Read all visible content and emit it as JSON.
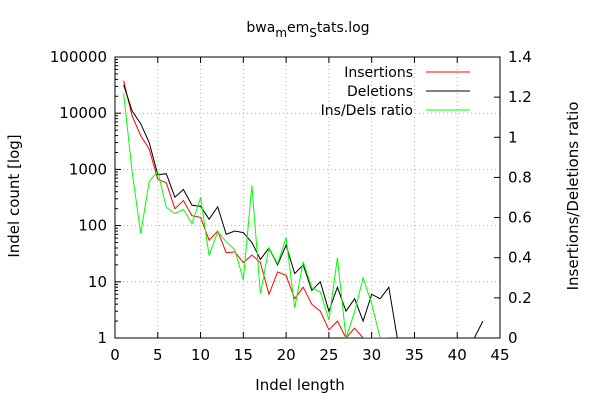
{
  "chart_data": {
    "type": "line",
    "title_parts": {
      "a": "bwa",
      "b": "m",
      "c": "em",
      "d": "S",
      "e": "tats.log"
    },
    "xlabel": "Indel length",
    "ylabel": "Indel count [log]",
    "y2label": "Insertions/Deletions ratio",
    "xlim": [
      0,
      45
    ],
    "ylim": [
      1,
      100000
    ],
    "y_scale": "log",
    "y2lim": [
      0,
      1.4
    ],
    "grid": true,
    "legend_position": "top-right",
    "x_ticks": [
      {
        "value": 0,
        "label": "0"
      },
      {
        "value": 5,
        "label": "5"
      },
      {
        "value": 10,
        "label": "10"
      },
      {
        "value": 15,
        "label": "15"
      },
      {
        "value": 20,
        "label": "20"
      },
      {
        "value": 25,
        "label": "25"
      },
      {
        "value": 30,
        "label": "30"
      },
      {
        "value": 35,
        "label": "35"
      },
      {
        "value": 40,
        "label": "40"
      },
      {
        "value": 45,
        "label": "45"
      }
    ],
    "y_ticks": [
      {
        "value": 1,
        "label": "1"
      },
      {
        "value": 10,
        "label": "10"
      },
      {
        "value": 100,
        "label": "100"
      },
      {
        "value": 1000,
        "label": "1000"
      },
      {
        "value": 10000,
        "label": "10000"
      },
      {
        "value": 100000,
        "label": "100000"
      }
    ],
    "y2_ticks": [
      {
        "value": 0,
        "label": "0"
      },
      {
        "value": 0.2,
        "label": "0.2"
      },
      {
        "value": 0.4,
        "label": "0.4"
      },
      {
        "value": 0.6,
        "label": "0.6"
      },
      {
        "value": 0.8,
        "label": "0.8"
      },
      {
        "value": 1,
        "label": "1"
      },
      {
        "value": 1.2,
        "label": "1.2"
      },
      {
        "value": 1.4,
        "label": "1.4"
      }
    ],
    "series": [
      {
        "name": "Insertions",
        "color": "#ff0000",
        "axis": "left",
        "points": [
          [
            1,
            38000
          ],
          [
            2,
            9000
          ],
          [
            3,
            4000
          ],
          [
            4,
            2300
          ],
          [
            5,
            660
          ],
          [
            6,
            580
          ],
          [
            7,
            200
          ],
          [
            8,
            280
          ],
          [
            9,
            150
          ],
          [
            10,
            140
          ],
          [
            11,
            55
          ],
          [
            12,
            80
          ],
          [
            13,
            33
          ],
          [
            14,
            34
          ],
          [
            15,
            22
          ],
          [
            16,
            30
          ],
          [
            17,
            22
          ],
          [
            18,
            6
          ],
          [
            19,
            15
          ],
          [
            20,
            13
          ],
          [
            21,
            5
          ],
          [
            22,
            8
          ],
          [
            23,
            4
          ],
          [
            24,
            3
          ],
          [
            25,
            1.4
          ],
          [
            26,
            2
          ],
          [
            27,
            1
          ],
          [
            28,
            1.5
          ],
          [
            29,
            1
          ],
          [
            30,
            1
          ],
          [
            31,
            1
          ],
          [
            32,
            1
          ]
        ]
      },
      {
        "name": "Deletions",
        "color": "#000000",
        "axis": "left",
        "points": [
          [
            1,
            32000
          ],
          [
            2,
            11000
          ],
          [
            3,
            6500
          ],
          [
            4,
            3000
          ],
          [
            5,
            800
          ],
          [
            6,
            840
          ],
          [
            7,
            320
          ],
          [
            8,
            440
          ],
          [
            9,
            230
          ],
          [
            10,
            220
          ],
          [
            11,
            130
          ],
          [
            12,
            215
          ],
          [
            13,
            70
          ],
          [
            14,
            80
          ],
          [
            15,
            75
          ],
          [
            16,
            50
          ],
          [
            17,
            25
          ],
          [
            18,
            40
          ],
          [
            19,
            20
          ],
          [
            20,
            45
          ],
          [
            21,
            14
          ],
          [
            22,
            20
          ],
          [
            23,
            7
          ],
          [
            24,
            10
          ],
          [
            25,
            3
          ],
          [
            26,
            8
          ],
          [
            27,
            3
          ],
          [
            28,
            5
          ],
          [
            29,
            2
          ],
          [
            30,
            6
          ],
          [
            31,
            5
          ],
          [
            32,
            8
          ],
          [
            33,
            1
          ],
          [
            34,
            1
          ],
          [
            35,
            1
          ],
          [
            36,
            1
          ],
          [
            37,
            1
          ],
          [
            38,
            1
          ],
          [
            39,
            1
          ],
          [
            40,
            1
          ],
          [
            41,
            1
          ],
          [
            42,
            1
          ],
          [
            43,
            2
          ]
        ]
      },
      {
        "name": "Ins/Dels ratio",
        "color": "#00ff00",
        "axis": "right",
        "points": [
          [
            1,
            1.22
          ],
          [
            2,
            0.83
          ],
          [
            3,
            0.52
          ],
          [
            4,
            0.78
          ],
          [
            5,
            0.83
          ],
          [
            6,
            0.65
          ],
          [
            7,
            0.62
          ],
          [
            8,
            0.64
          ],
          [
            9,
            0.57
          ],
          [
            10,
            0.7
          ],
          [
            11,
            0.41
          ],
          [
            12,
            0.53
          ],
          [
            13,
            0.48
          ],
          [
            14,
            0.44
          ],
          [
            15,
            0.29
          ],
          [
            16,
            0.76
          ],
          [
            17,
            0.22
          ],
          [
            18,
            0.45
          ],
          [
            19,
            0.37
          ],
          [
            20,
            0.5
          ],
          [
            21,
            0.15
          ],
          [
            22,
            0.38
          ],
          [
            23,
            0.25
          ],
          [
            24,
            0.23
          ],
          [
            25,
            0.09
          ],
          [
            26,
            0.4
          ],
          [
            27,
            0.0
          ],
          [
            28,
            0.13
          ],
          [
            29,
            0.3
          ],
          [
            30,
            0.17
          ],
          [
            31,
            0.0
          ]
        ]
      }
    ]
  }
}
